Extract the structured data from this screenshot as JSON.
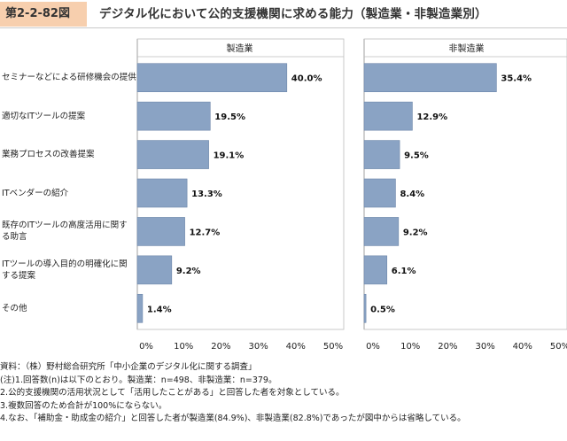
{
  "figure": {
    "number": "第2-2-82図",
    "title": "デジタル化において公的支援機関に求める能力（製造業・非製造業別）"
  },
  "chart_data": {
    "type": "bar",
    "orientation": "horizontal",
    "categories": [
      "セミナーなどによる研修機会の提供",
      "適切なITツールの提案",
      "業務プロセスの改善提案",
      "ITベンダーの紹介",
      "既存のITツールの高度活用に関する助言",
      "ITツールの導入目的の明確化に関する提案",
      "その他"
    ],
    "category_lines": [
      [
        "セミナーなどによる研修機会の提供"
      ],
      [
        "適切なITツールの提案"
      ],
      [
        "業務プロセスの改善提案"
      ],
      [
        "ITベンダーの紹介"
      ],
      [
        "既存のITツールの高度活用に関す",
        "る助言"
      ],
      [
        "ITツールの導入目的の明確化に関",
        "する提案"
      ],
      [
        "その他"
      ]
    ],
    "panels": [
      {
        "name": "製造業",
        "values": [
          40.0,
          19.5,
          19.1,
          13.3,
          12.7,
          9.2,
          1.4
        ],
        "value_labels": [
          "40.0%",
          "19.5%",
          "19.1%",
          "13.3%",
          "12.7%",
          "9.2%",
          "1.4%"
        ]
      },
      {
        "name": "非製造業",
        "values": [
          35.4,
          12.9,
          9.5,
          8.4,
          9.2,
          6.1,
          0.5
        ],
        "value_labels": [
          "35.4%",
          "12.9%",
          "9.5%",
          "8.4%",
          "9.2%",
          "6.1%",
          "0.5%"
        ]
      }
    ],
    "xlim": [
      0,
      50
    ],
    "x_ticks": [
      "0%",
      "10%",
      "20%",
      "30%",
      "40%",
      "50%"
    ],
    "bar_color": "#8aa3c4",
    "bar_border_color": "#6d87aa",
    "grid": false
  },
  "notes": [
    "資料：（株）野村総合研究所「中小企業のデジタル化に関する調査」",
    "(注)1.回答数(n)は以下のとおり。製造業：n=498、非製造業：n=379。",
    "2.公的支援機関の活用状況として「活用したことがある」と回答した者を対象としている。",
    "3.複数回答のため合計が100%にならない。",
    "4.なお、「補助金・助成金の紹介」と回答した者が製造業(84.9%)、非製造業(82.8%)であったが図中からは省略している。"
  ]
}
